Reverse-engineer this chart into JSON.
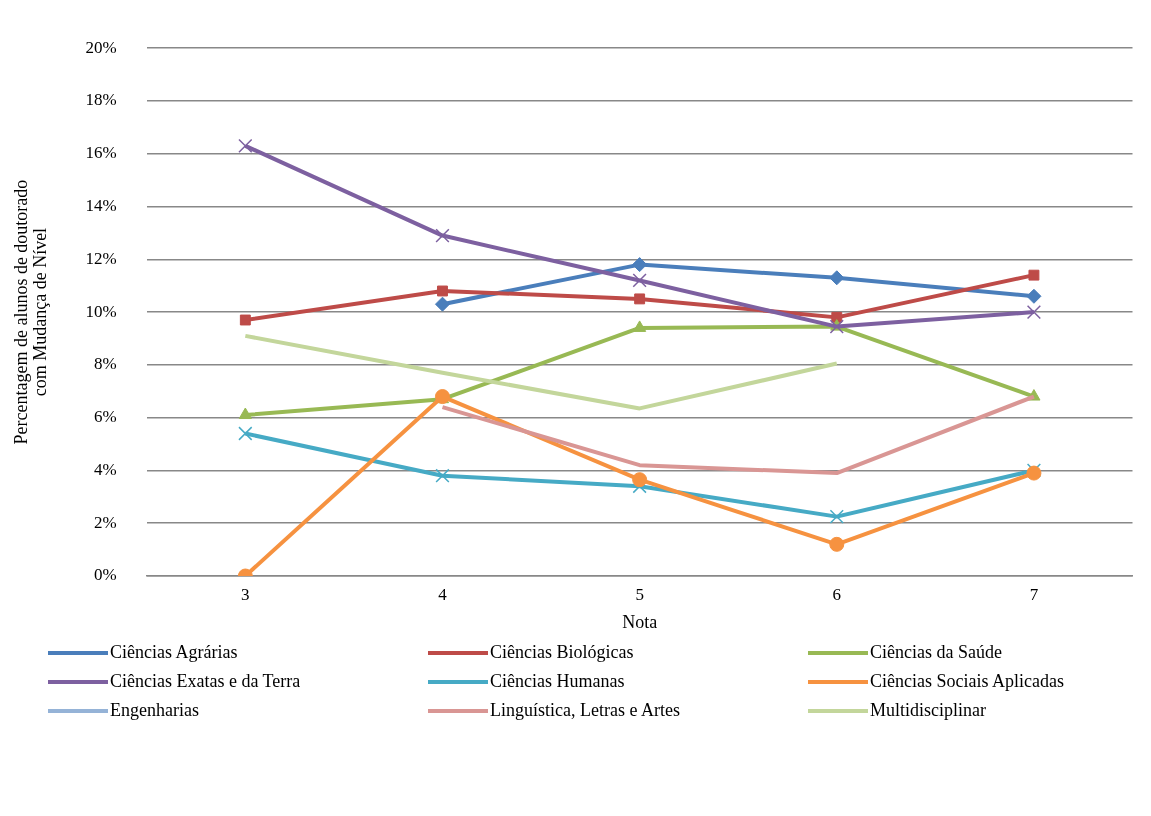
{
  "chart_data": {
    "type": "line",
    "xlabel": "Nota",
    "ylabel": "Percentagem de alunos de doutorado\ncom Mudança de Nível",
    "categories": [
      "3",
      "4",
      "5",
      "6",
      "7"
    ],
    "series": [
      {
        "name": "Ciências Agrárias",
        "color": "#4a7ebb",
        "marker": "diamond",
        "values": [
          null,
          10.3,
          11.8,
          11.3,
          10.6
        ]
      },
      {
        "name": "Ciências Biológicas",
        "color": "#be4b48",
        "marker": "square",
        "values": [
          9.7,
          10.8,
          10.5,
          9.8,
          11.4
        ]
      },
      {
        "name": "Ciências da Saúde",
        "color": "#98b954",
        "marker": "triangle",
        "values": [
          6.1,
          6.7,
          9.4,
          9.45,
          6.8
        ]
      },
      {
        "name": "Ciências Exatas e da Terra",
        "color": "#7d60a0",
        "marker": "cross",
        "values": [
          16.3,
          12.9,
          11.2,
          9.45,
          10.0
        ]
      },
      {
        "name": "Ciências Humanas",
        "color": "#46aac5",
        "marker": "cross",
        "values": [
          5.4,
          3.8,
          3.4,
          2.25,
          4.0
        ]
      },
      {
        "name": "Ciências Sociais Aplicadas",
        "color": "#f69240",
        "marker": "circle",
        "values": [
          0,
          6.8,
          3.65,
          1.2,
          3.9
        ]
      },
      {
        "name": "Engenharias",
        "color": "#95b3d7",
        "marker": "none",
        "values": [
          null,
          null,
          null,
          null,
          null
        ]
      },
      {
        "name": "Linguística, Letras e Artes",
        "color": "#d99694",
        "marker": "none",
        "values": [
          null,
          6.4,
          4.2,
          3.9,
          6.8
        ]
      },
      {
        "name": "Multidisciplinar",
        "color": "#c3d69b",
        "marker": "none",
        "values": [
          9.1,
          7.7,
          6.35,
          8.05,
          null
        ]
      }
    ],
    "ylim": [
      0,
      20
    ],
    "yticks": [
      {
        "value": 0,
        "label": "0%"
      },
      {
        "value": 2,
        "label": "2%"
      },
      {
        "value": 4,
        "label": "4%"
      },
      {
        "value": 6,
        "label": "6%"
      },
      {
        "value": 8,
        "label": "8%"
      },
      {
        "value": 10,
        "label": "10%"
      },
      {
        "value": 12,
        "label": "12%"
      },
      {
        "value": 14,
        "label": "14%"
      },
      {
        "value": 16,
        "label": "16%"
      },
      {
        "value": 18,
        "label": "18%"
      },
      {
        "value": 20,
        "label": "20%"
      }
    ],
    "grid": "y",
    "legend": "bottom",
    "line_style": "solid"
  }
}
